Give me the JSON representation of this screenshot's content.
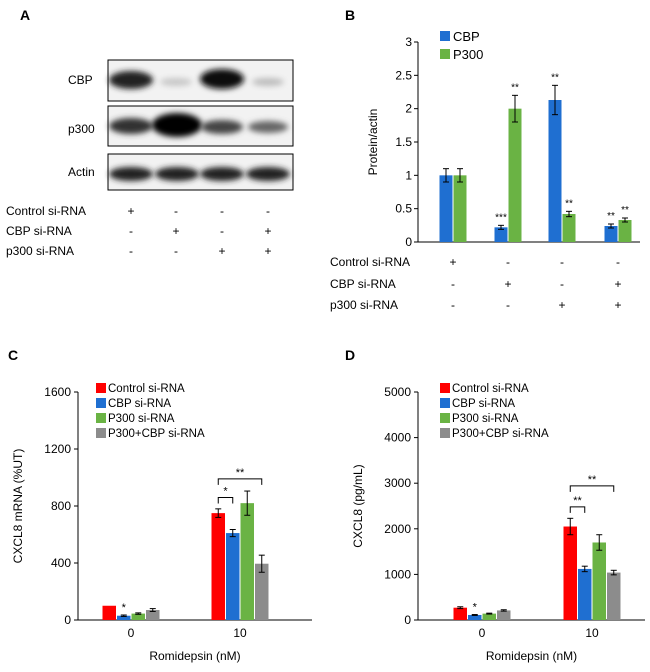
{
  "panel_letters": {
    "a": "A",
    "b": "B",
    "c": "C",
    "d": "D"
  },
  "blot": {
    "labels": [
      "CBP",
      "p300",
      "Actin"
    ],
    "treatment_rows": [
      {
        "label": "Control si-RNA",
        "signs": [
          "+",
          "-",
          "-",
          "-"
        ]
      },
      {
        "label": "CBP si-RNA",
        "signs": [
          "-",
          "+",
          "-",
          "+"
        ]
      },
      {
        "label": "p300 si-RNA",
        "signs": [
          "-",
          "-",
          "+",
          "+"
        ]
      }
    ]
  },
  "colors": {
    "red": "#ff0000",
    "blue": "#1f6fd1",
    "green": "#6ab344",
    "gray": "#8c8c8c",
    "cbp": "#1f6fd1",
    "p300": "#6ab344"
  },
  "chart_data": [
    {
      "panel": "B",
      "type": "bar",
      "ylabel": "Protein/actin",
      "ylim": [
        0,
        3
      ],
      "yticks": [
        "0",
        "0.5",
        "1",
        "1.5",
        "2",
        "2.5",
        "3"
      ],
      "legend_position": "top-left",
      "series": [
        {
          "name": "CBP",
          "values": [
            1.0,
            0.22,
            2.13,
            0.24
          ],
          "errors": [
            0.1,
            0.03,
            0.22,
            0.03
          ],
          "sig": [
            "",
            "***",
            "**",
            "**"
          ]
        },
        {
          "name": "P300",
          "values": [
            1.0,
            2.0,
            0.42,
            0.33
          ],
          "errors": [
            0.1,
            0.2,
            0.04,
            0.03
          ],
          "sig": [
            "",
            "**",
            "**",
            "**"
          ]
        }
      ],
      "treatment_rows": [
        {
          "label": "Control si-RNA",
          "signs": [
            "+",
            "-",
            "-",
            "-"
          ]
        },
        {
          "label": "CBP si-RNA",
          "signs": [
            "-",
            "+",
            "-",
            "+"
          ]
        },
        {
          "label": "p300 si-RNA",
          "signs": [
            "-",
            "-",
            "+",
            "+"
          ]
        }
      ]
    },
    {
      "panel": "C",
      "type": "bar",
      "categories": [
        "0",
        "10"
      ],
      "xlabel": "Romidepsin (nM)",
      "ylabel": "CXCL8 mRNA (%UT)",
      "ylim": [
        0,
        1600
      ],
      "yticks": [
        "0",
        "400",
        "800",
        "1200",
        "1600"
      ],
      "legend_position": "top-left",
      "series": [
        {
          "name": "Control si-RNA",
          "values": [
            100,
            750
          ],
          "errors": [
            0,
            30
          ],
          "sig": [
            "",
            ""
          ]
        },
        {
          "name": "CBP si-RNA",
          "values": [
            30,
            610
          ],
          "errors": [
            5,
            25
          ],
          "sig": [
            "*",
            ""
          ]
        },
        {
          "name": "P300 si-RNA",
          "values": [
            45,
            820
          ],
          "errors": [
            5,
            85
          ],
          "sig": [
            "",
            ""
          ]
        },
        {
          "name": "P300+CBP si-RNA",
          "values": [
            70,
            395
          ],
          "errors": [
            10,
            60
          ],
          "sig": [
            "",
            ""
          ]
        }
      ],
      "brackets": [
        {
          "category": 1,
          "from_series": 0,
          "to_series": 1,
          "label": "*",
          "y": 860
        },
        {
          "category": 1,
          "from_series": 0,
          "to_series": 3,
          "label": "**",
          "y": 990
        }
      ]
    },
    {
      "panel": "D",
      "type": "bar",
      "categories": [
        "0",
        "10"
      ],
      "xlabel": "Romidepsin (nM)",
      "ylabel": "CXCL8 (pg/mL)",
      "ylim": [
        0,
        5000
      ],
      "yticks": [
        "0",
        "1000",
        "2000",
        "3000",
        "4000",
        "5000"
      ],
      "legend_position": "top-left",
      "series": [
        {
          "name": "Control si-RNA",
          "values": [
            270,
            2050
          ],
          "errors": [
            20,
            180
          ],
          "sig": [
            "",
            ""
          ]
        },
        {
          "name": "CBP si-RNA",
          "values": [
            110,
            1120
          ],
          "errors": [
            10,
            60
          ],
          "sig": [
            "*",
            ""
          ]
        },
        {
          "name": "P300 si-RNA",
          "values": [
            140,
            1700
          ],
          "errors": [
            10,
            170
          ],
          "sig": [
            "",
            ""
          ]
        },
        {
          "name": "P300+CBP si-RNA",
          "values": [
            210,
            1040
          ],
          "errors": [
            15,
            50
          ],
          "sig": [
            "",
            ""
          ]
        }
      ],
      "brackets": [
        {
          "category": 1,
          "from_series": 0,
          "to_series": 1,
          "label": "**",
          "y": 2480
        },
        {
          "category": 1,
          "from_series": 0,
          "to_series": 3,
          "label": "**",
          "y": 2940
        }
      ]
    }
  ]
}
